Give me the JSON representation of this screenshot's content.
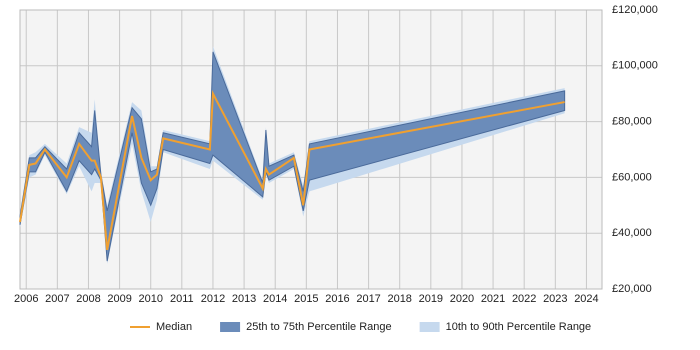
{
  "chart_data": {
    "type": "band-line",
    "x": [
      2005.8,
      2006.1,
      2006.3,
      2006.6,
      2007.3,
      2007.7,
      2008.1,
      2008.2,
      2008.4,
      2008.6,
      2009.4,
      2009.7,
      2010.0,
      2010.2,
      2010.4,
      2011.9,
      2012.0,
      2013.6,
      2013.7,
      2013.8,
      2014.6,
      2014.9,
      2015.1,
      2023.3
    ],
    "bands": [
      {
        "name": "10th to 90th Percentile Range",
        "color": "#c6d9ee",
        "lower": [
          42000,
          60000,
          61000,
          68000,
          54000,
          64000,
          55000,
          58000,
          58000,
          29000,
          72000,
          55000,
          44000,
          52000,
          69000,
          63000,
          66000,
          52000,
          61000,
          58000,
          63000,
          46000,
          55000,
          83000
        ],
        "upper": [
          47000,
          68000,
          69000,
          72000,
          65000,
          78000,
          76000,
          88000,
          62000,
          50000,
          87000,
          84000,
          64000,
          64000,
          77000,
          73000,
          107000,
          59000,
          78000,
          65000,
          69000,
          57000,
          73000,
          92000
        ]
      },
      {
        "name": "25th to 75th Percentile Range",
        "color": "#6b8cba",
        "lower": [
          43000,
          62000,
          62000,
          69000,
          55000,
          66000,
          61000,
          63000,
          59000,
          30000,
          76000,
          58000,
          50000,
          56000,
          70000,
          65000,
          68000,
          53000,
          62000,
          59000,
          64000,
          48000,
          59000,
          84000
        ],
        "upper": [
          46000,
          67000,
          67000,
          71000,
          63000,
          76000,
          71000,
          84000,
          61000,
          48000,
          85000,
          81000,
          62000,
          63000,
          76000,
          72000,
          105000,
          58000,
          77000,
          64000,
          68000,
          55000,
          72000,
          91000
        ]
      }
    ],
    "series": [
      {
        "name": "Median",
        "color": "#f0a030",
        "values": [
          44000,
          64500,
          65000,
          70000,
          60000,
          72000,
          66000,
          66000,
          60000,
          34000,
          82000,
          67000,
          59000,
          61000,
          74000,
          70000,
          90000,
          56000,
          63000,
          61000,
          67000,
          50000,
          70000,
          87000
        ]
      }
    ],
    "xlim": [
      2005.8,
      2024.5
    ],
    "xticks": [
      2006,
      2007,
      2008,
      2009,
      2010,
      2011,
      2012,
      2013,
      2014,
      2015,
      2016,
      2017,
      2018,
      2019,
      2020,
      2021,
      2022,
      2023,
      2024
    ],
    "ylim": [
      20000,
      120000
    ],
    "yticks": [
      {
        "value": 20000,
        "label": "£20,000"
      },
      {
        "value": 40000,
        "label": "£40,000"
      },
      {
        "value": 60000,
        "label": "£60,000"
      },
      {
        "value": 80000,
        "label": "£80,000"
      },
      {
        "value": 100000,
        "label": "£100,000"
      },
      {
        "value": 120000,
        "label": "£120,000"
      }
    ],
    "grid": true
  }
}
